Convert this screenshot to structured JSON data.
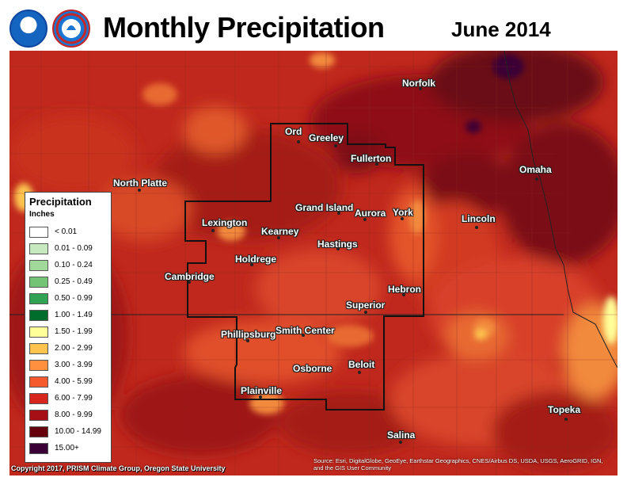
{
  "header": {
    "title": "Monthly Precipitation",
    "date": "June 2014"
  },
  "logos": [
    "noaa-logo",
    "nws-logo"
  ],
  "legend": {
    "title": "Precipitation",
    "units": "Inches",
    "items": [
      {
        "label": "< 0.01",
        "color": "#ffffff"
      },
      {
        "label": "0.01 - 0.09",
        "color": "#c7e9c0"
      },
      {
        "label": "0.10 - 0.24",
        "color": "#a1d99b"
      },
      {
        "label": "0.25 - 0.49",
        "color": "#74c476"
      },
      {
        "label": "0.50 - 0.99",
        "color": "#31a354"
      },
      {
        "label": "1.00 - 1.49",
        "color": "#006d2c"
      },
      {
        "label": "1.50 - 1.99",
        "color": "#ffff99"
      },
      {
        "label": "2.00 - 2.99",
        "color": "#fec44f"
      },
      {
        "label": "3.00 - 3.99",
        "color": "#fe9040"
      },
      {
        "label": "4.00 - 5.99",
        "color": "#f55a2c"
      },
      {
        "label": "6.00 - 7.99",
        "color": "#d7261e"
      },
      {
        "label": "8.00 - 9.99",
        "color": "#a50f15"
      },
      {
        "label": "10.00 - 14.99",
        "color": "#67000d"
      },
      {
        "label": "15.00+",
        "color": "#3b0035"
      }
    ]
  },
  "cities": [
    {
      "name": "Norfolk"
    },
    {
      "name": "Ord"
    },
    {
      "name": "Greeley"
    },
    {
      "name": "Fullerton"
    },
    {
      "name": "Omaha"
    },
    {
      "name": "North Platte"
    },
    {
      "name": "Grand Island"
    },
    {
      "name": "Aurora"
    },
    {
      "name": "York"
    },
    {
      "name": "Lincoln"
    },
    {
      "name": "Lexington"
    },
    {
      "name": "Kearney"
    },
    {
      "name": "Hastings"
    },
    {
      "name": "Holdrege"
    },
    {
      "name": "Cambridge"
    },
    {
      "name": "Hebron"
    },
    {
      "name": "Superior"
    },
    {
      "name": "Phillipsburg"
    },
    {
      "name": "Smith Center"
    },
    {
      "name": "Osborne"
    },
    {
      "name": "Beloit"
    },
    {
      "name": "Plainville"
    },
    {
      "name": "Topeka"
    },
    {
      "name": "Salina"
    }
  ],
  "footer": {
    "copyright": "Copyright 2017, PRISM Climate Group, Oregon State University",
    "attribution": "Source: Esri, DigitalGlobe, GeoEye, Earthstar Geographics, CNES/Airbus DS, USDA, USGS, AeroGRID, IGN, and the GIS User Community"
  }
}
